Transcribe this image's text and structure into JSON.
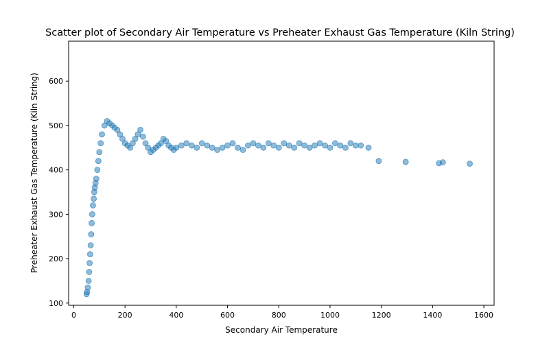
{
  "chart_data": {
    "type": "scatter",
    "title": "Scatter plot of Secondary Air Temperature vs Preheater Exhaust Gas Temperature  (Kiln String)",
    "xlabel": "Secondary Air Temperature",
    "ylabel": "Preheater Exhaust Gas Temperature  (Kiln String)",
    "xlim": [
      -20,
      1640
    ],
    "ylim": [
      95,
      690
    ],
    "xticks": [
      0,
      200,
      400,
      600,
      800,
      1000,
      1200,
      1400,
      1600
    ],
    "yticks": [
      100,
      200,
      300,
      400,
      500,
      600
    ],
    "grid": false,
    "marker_color": "#1f77b4",
    "marker_alpha": 0.5,
    "series": [
      {
        "x": [
          50,
          52,
          55,
          58,
          60,
          62,
          64,
          66,
          68,
          70,
          72,
          75,
          78,
          80,
          82,
          85,
          88,
          92,
          96,
          100,
          105,
          110,
          120,
          130,
          140,
          150,
          160,
          170,
          180,
          190,
          200,
          210,
          220,
          230,
          240,
          250,
          260,
          270,
          280,
          290,
          300,
          310,
          320,
          330,
          340,
          350,
          360,
          370,
          380,
          390,
          400,
          420,
          440,
          460,
          480,
          500,
          520,
          540,
          560,
          580,
          600,
          620,
          640,
          660,
          680,
          700,
          720,
          740,
          760,
          780,
          800,
          820,
          840,
          860,
          880,
          900,
          920,
          940,
          960,
          980,
          1000,
          1020,
          1040,
          1060,
          1080,
          1100,
          1120,
          1150,
          1190,
          1295,
          1425,
          1440,
          1545
        ],
        "y": [
          120,
          125,
          135,
          150,
          170,
          190,
          210,
          230,
          255,
          280,
          300,
          320,
          335,
          350,
          360,
          370,
          380,
          400,
          420,
          440,
          460,
          480,
          500,
          510,
          505,
          500,
          495,
          490,
          480,
          470,
          460,
          455,
          450,
          460,
          470,
          480,
          490,
          475,
          460,
          450,
          440,
          445,
          450,
          455,
          460,
          470,
          465,
          455,
          450,
          445,
          450,
          455,
          460,
          455,
          450,
          460,
          455,
          450,
          445,
          450,
          455,
          460,
          450,
          445,
          455,
          460,
          455,
          450,
          460,
          455,
          450,
          460,
          455,
          450,
          460,
          455,
          450,
          455,
          460,
          455,
          450,
          460,
          455,
          450,
          460,
          455,
          455,
          450,
          420,
          418,
          415,
          417,
          414
        ]
      }
    ]
  }
}
